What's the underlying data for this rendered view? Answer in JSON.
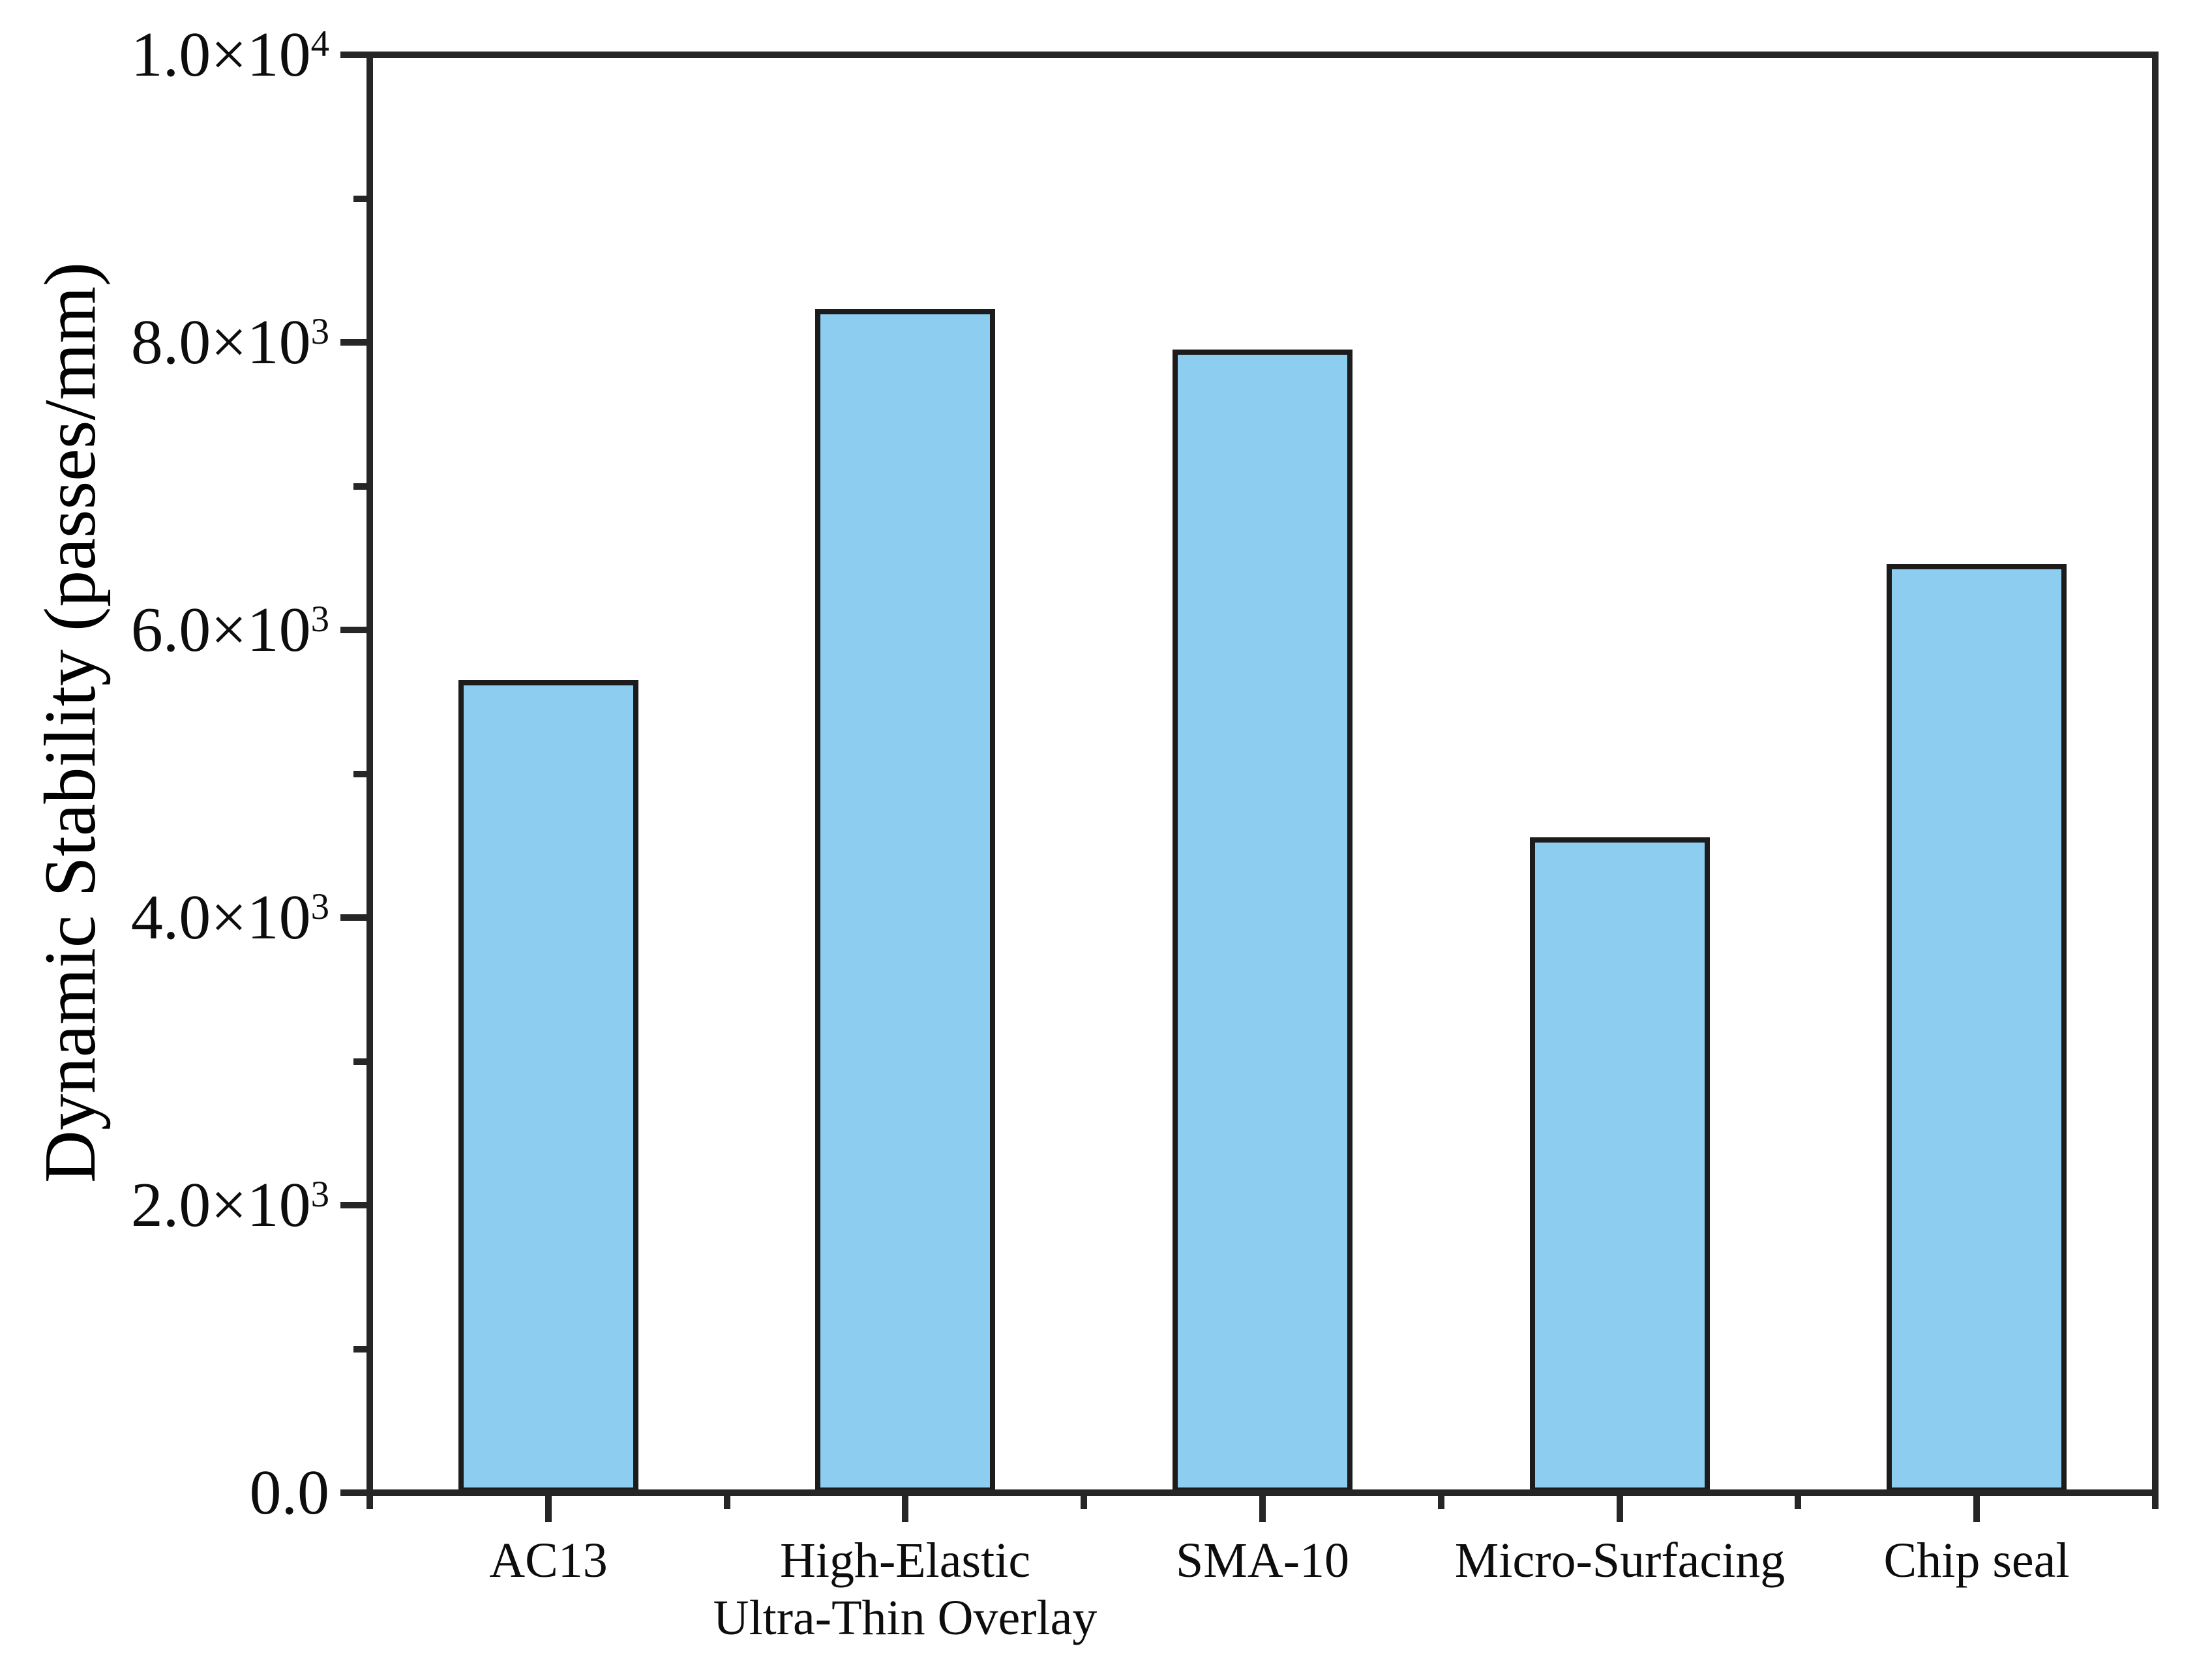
{
  "chart_data": {
    "type": "bar",
    "ylabel": "Dynamic Stability (passes/mm)",
    "xlabel": "",
    "categories": [
      "AC13",
      "High-Elastic Ultra-Thin Overlay",
      "SMA-10",
      "Micro-Surfacing",
      "Chip seal"
    ],
    "category_label_lines": [
      [
        "AC13"
      ],
      [
        "High-Elastic",
        "Ultra-Thin Overlay"
      ],
      [
        "SMA-10"
      ],
      [
        "Micro-Surfacing"
      ],
      [
        "Chip seal"
      ]
    ],
    "series": [
      {
        "name": "Dynamic Stability",
        "values": [
          5650,
          8230,
          7950,
          4560,
          6460
        ]
      }
    ],
    "values_unit": "passes/mm",
    "ylim": [
      0,
      10000
    ],
    "yticks": [
      {
        "value": 0,
        "mantissa": "0.0",
        "exp": ""
      },
      {
        "value": 2000,
        "mantissa": "2.0×10",
        "exp": "3"
      },
      {
        "value": 4000,
        "mantissa": "4.0×10",
        "exp": "3"
      },
      {
        "value": 6000,
        "mantissa": "6.0×10",
        "exp": "3"
      },
      {
        "value": 8000,
        "mantissa": "8.0×10",
        "exp": "3"
      },
      {
        "value": 10000,
        "mantissa": "1.0×10",
        "exp": "4"
      }
    ],
    "yminor_ticks": [
      1000,
      3000,
      5000,
      7000,
      9000
    ],
    "grid": false,
    "legend_position": "none",
    "colors": {
      "bar_fill": "#8DCEF0",
      "bar_border": "#1C1C1C",
      "axis": "#262626",
      "text": "#0D0D0D"
    }
  }
}
